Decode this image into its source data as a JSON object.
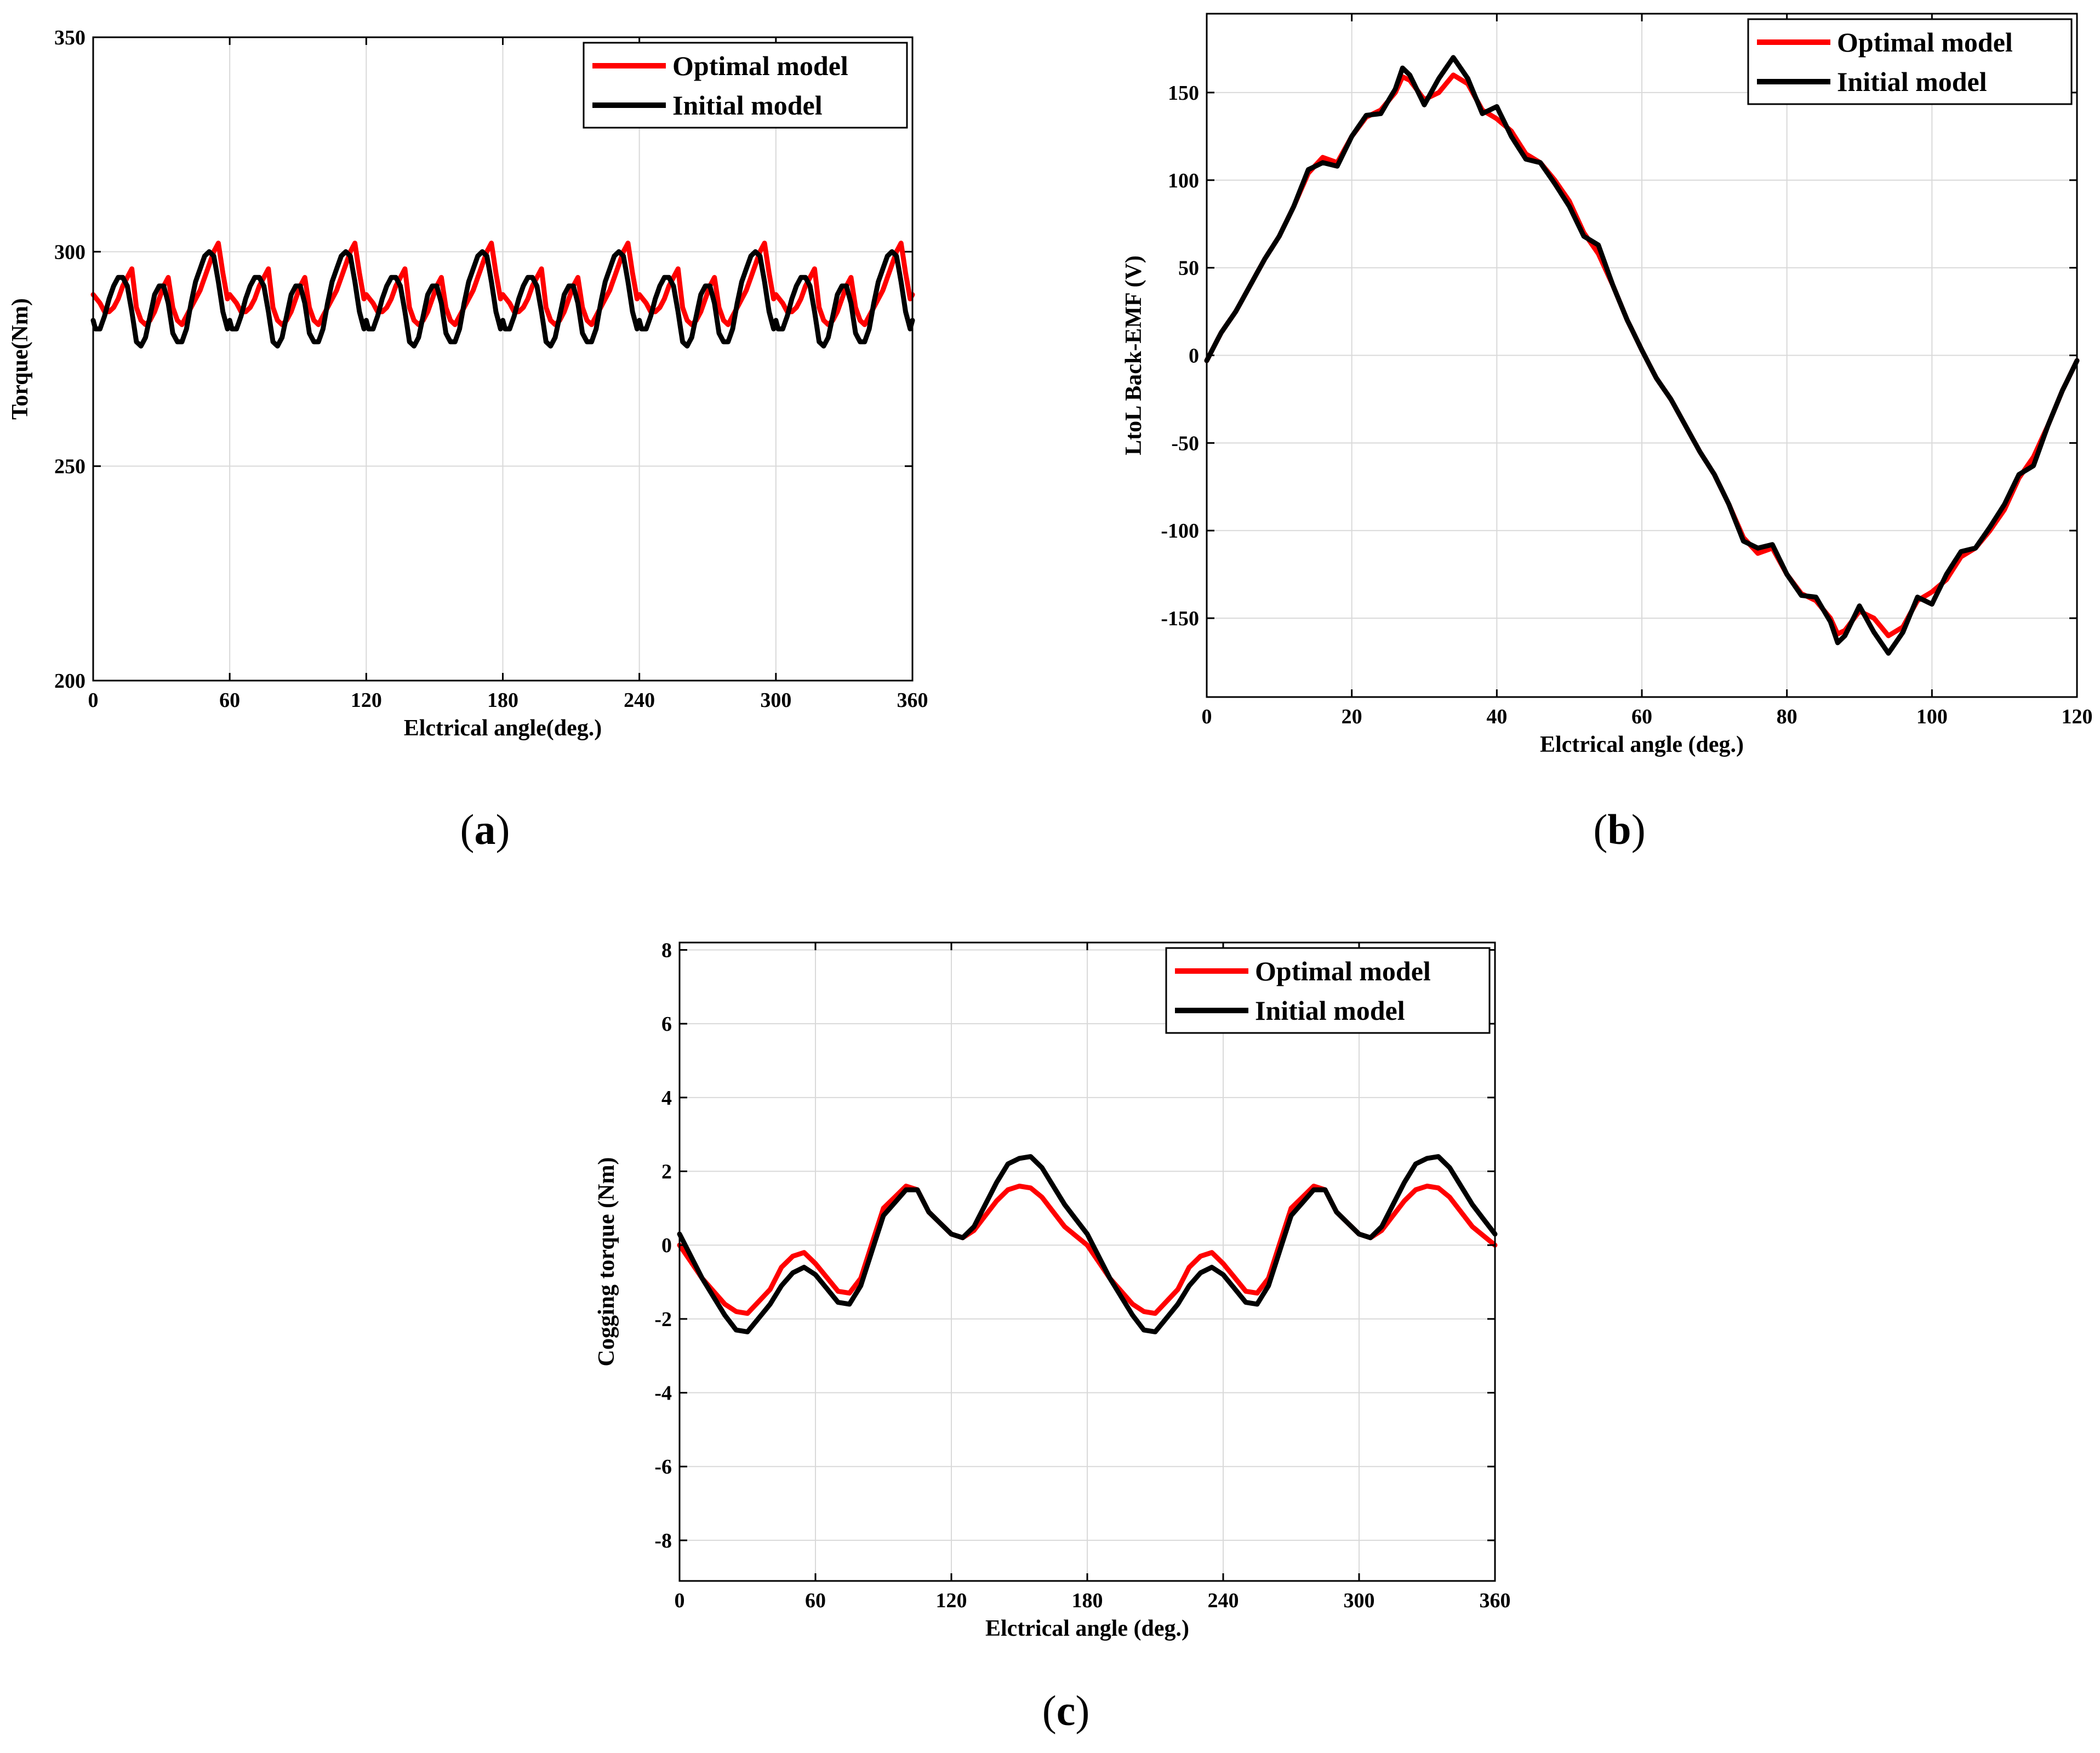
{
  "figure": {
    "colors": {
      "optimal": "#ff0000",
      "initial": "#000000"
    }
  },
  "chart_data": [
    {
      "id": "a",
      "type": "line",
      "caption": {
        "open": "(",
        "letter": "a",
        "close": ")"
      },
      "xlabel": "Elctrical angle(deg.)",
      "ylabel": "Torque(Nm)",
      "xlim": [
        0,
        360
      ],
      "ylim": [
        200,
        350
      ],
      "xticks": [
        0,
        60,
        120,
        180,
        240,
        300,
        360
      ],
      "yticks": [
        200,
        250,
        300,
        350
      ],
      "grid": true,
      "legend_position": "top-right",
      "legend": [
        "Optimal model",
        "Initial model"
      ],
      "generator": {
        "kind": "periodic",
        "x_end": 360,
        "step": 1,
        "period": 60,
        "series": [
          {
            "name": "Optimal model",
            "color": "#ff0000",
            "kx": [
              0,
              3,
              5,
              7,
              9,
              11,
              13,
              15,
              17,
              19,
              21,
              23,
              25,
              27,
              29,
              31,
              33,
              35,
              37,
              39,
              41,
              43,
              45,
              47,
              49,
              51,
              53,
              55,
              57,
              59,
              60
            ],
            "ky": [
              290,
              288,
              286,
              286,
              287,
              289,
              292,
              294,
              296,
              287,
              284,
              283,
              284,
              286,
              289,
              292,
              294,
              287,
              284,
              283,
              285,
              287,
              289,
              291,
              294,
              297,
              300,
              302,
              295,
              289,
              290
            ]
          },
          {
            "name": "Initial model",
            "color": "#000000",
            "kx": [
              0,
              1,
              3,
              5,
              7,
              9,
              11,
              13,
              15,
              17,
              19,
              21,
              23,
              25,
              27,
              29,
              31,
              33,
              35,
              37,
              39,
              41,
              43,
              45,
              47,
              49,
              51,
              53,
              55,
              57,
              59,
              60
            ],
            "ky": [
              284,
              282,
              282,
              285,
              289,
              292,
              294,
              294,
              292,
              286,
              279,
              278,
              280,
              285,
              290,
              292,
              292,
              288,
              281,
              279,
              279,
              282,
              288,
              293,
              296,
              299,
              300,
              299,
              293,
              286,
              282,
              284
            ]
          }
        ]
      }
    },
    {
      "id": "b",
      "type": "line",
      "caption": {
        "open": "(",
        "letter": "b",
        "close": ")"
      },
      "xlabel": "Elctrical angle (deg.)",
      "ylabel": "LtoL Back-EMF (V)",
      "xlim": [
        0,
        120
      ],
      "ylim": [
        -195,
        195
      ],
      "xticks": [
        0,
        20,
        40,
        60,
        80,
        100,
        120
      ],
      "yticks": [
        -150,
        -100,
        -50,
        0,
        50,
        100,
        150
      ],
      "grid": true,
      "legend_position": "top-right",
      "legend": [
        "Optimal model",
        "Initial model"
      ],
      "generator": {
        "kind": "antiperiodic",
        "x_end": 120,
        "step": 0.5,
        "half_period": 60,
        "series": [
          {
            "name": "Optimal model",
            "color": "#ff0000",
            "kx": [
              0,
              2,
              4,
              6,
              8,
              10,
              12,
              14,
              16,
              18,
              20,
              22,
              24,
              26,
              27,
              28,
              30,
              32,
              34,
              36,
              38,
              40,
              42,
              44,
              46,
              48,
              50,
              52,
              54,
              56,
              58,
              60
            ],
            "ky": [
              -3,
              13,
              25,
              40,
              55,
              68,
              85,
              104,
              113,
              110,
              125,
              136,
              140,
              150,
              159,
              157,
              146,
              150,
              160,
              155,
              140,
              135,
              128,
              115,
              110,
              100,
              88,
              70,
              58,
              40,
              20,
              3
            ]
          },
          {
            "name": "Initial model",
            "color": "#000000",
            "kx": [
              0,
              2,
              4,
              6,
              8,
              10,
              12,
              14,
              16,
              18,
              20,
              22,
              24,
              26,
              27,
              28,
              30,
              32,
              34,
              36,
              38,
              40,
              42,
              44,
              46,
              48,
              50,
              52,
              54,
              56,
              58,
              60
            ],
            "ky": [
              -3,
              13,
              25,
              40,
              55,
              68,
              85,
              106,
              110,
              108,
              125,
              137,
              138,
              152,
              164,
              160,
              143,
              158,
              170,
              158,
              138,
              142,
              125,
              112,
              110,
              98,
              85,
              68,
              63,
              40,
              20,
              3
            ]
          }
        ]
      }
    },
    {
      "id": "c",
      "type": "line",
      "caption": {
        "open": "(",
        "letter": "c",
        "close": ")"
      },
      "xlabel": "Elctrical angle (deg.)",
      "ylabel": "Cogging torque (Nm)",
      "xlim": [
        0,
        360
      ],
      "ylim": [
        -9.1,
        8.2
      ],
      "xticks": [
        0,
        60,
        120,
        180,
        240,
        300,
        360
      ],
      "yticks": [
        -8,
        -6,
        -4,
        -2,
        0,
        2,
        4,
        6,
        8
      ],
      "grid": true,
      "legend_position": "top-right",
      "legend": [
        "Optimal model",
        "Initial model"
      ],
      "generator": {
        "kind": "periodic",
        "x_end": 360,
        "step": 5,
        "period": 180,
        "series": [
          {
            "name": "Optimal model",
            "color": "#ff0000",
            "kx": [
              0,
              10,
              20,
              25,
              30,
              40,
              45,
              50,
              55,
              60,
              70,
              75,
              80,
              90,
              100,
              105,
              110,
              120,
              125,
              130,
              140,
              145,
              150,
              155,
              160,
              170,
              180
            ],
            "ky": [
              0,
              -0.9,
              -1.6,
              -1.8,
              -1.85,
              -1.2,
              -0.6,
              -0.3,
              -0.2,
              -0.5,
              -1.25,
              -1.3,
              -0.9,
              1.0,
              1.6,
              1.5,
              0.9,
              0.3,
              0.2,
              0.4,
              1.2,
              1.5,
              1.6,
              1.55,
              1.3,
              0.5,
              0
            ]
          },
          {
            "name": "Initial model",
            "color": "#000000",
            "kx": [
              0,
              10,
              20,
              25,
              30,
              40,
              45,
              50,
              55,
              60,
              70,
              75,
              80,
              90,
              100,
              105,
              110,
              120,
              125,
              130,
              140,
              145,
              150,
              155,
              160,
              170,
              180
            ],
            "ky": [
              0.3,
              -0.9,
              -1.9,
              -2.3,
              -2.35,
              -1.6,
              -1.1,
              -0.75,
              -0.6,
              -0.8,
              -1.55,
              -1.6,
              -1.1,
              0.8,
              1.5,
              1.5,
              0.9,
              0.3,
              0.2,
              0.5,
              1.7,
              2.2,
              2.35,
              2.4,
              2.1,
              1.1,
              0.3
            ]
          }
        ]
      }
    }
  ]
}
